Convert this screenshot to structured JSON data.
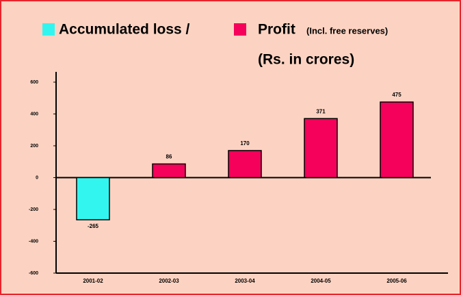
{
  "chart_data": {
    "type": "bar",
    "legend": [
      {
        "name": "Accumulated loss /",
        "color": "#33f5f0"
      },
      {
        "name": "Profit",
        "color": "#f5005a",
        "note": "(Incl. free reserves)"
      }
    ],
    "subtitle": "(Rs. in crores)",
    "categories": [
      "2001-02",
      "2002-03",
      "2003-04",
      "2004-05",
      "2005-06"
    ],
    "values": [
      -265,
      86,
      170,
      371,
      475
    ],
    "colors": [
      "#33f5f0",
      "#f5005a",
      "#f5005a",
      "#f5005a",
      "#f5005a"
    ],
    "ylim": [
      -600,
      600
    ],
    "yticks": [
      600,
      400,
      200,
      0,
      -200,
      -400,
      -600
    ]
  }
}
